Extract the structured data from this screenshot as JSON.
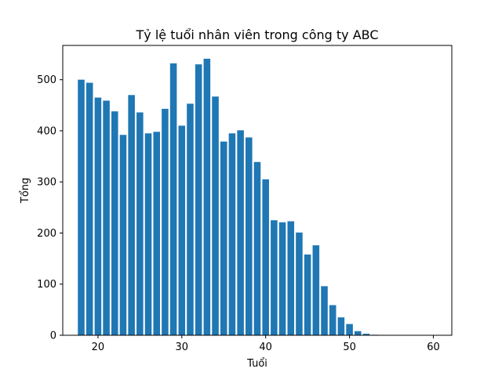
{
  "chart_data": {
    "type": "bar",
    "title": "Tỷ lệ tuổi nhân viên trong công ty ABC",
    "xlabel": "Tuổi",
    "ylabel": "Tổng",
    "xlim": [
      15.8,
      62.2
    ],
    "ylim": [
      0,
      567
    ],
    "xticks": [
      20,
      30,
      40,
      50,
      60
    ],
    "yticks": [
      0,
      100,
      200,
      300,
      400,
      500
    ],
    "bar_color": "#1f77b4",
    "grid": false,
    "legend": "none",
    "x": [
      18,
      19,
      20,
      21,
      22,
      23,
      24,
      25,
      26,
      27,
      28,
      29,
      30,
      31,
      32,
      33,
      34,
      35,
      36,
      37,
      38,
      39,
      40,
      41,
      42,
      43,
      44,
      45,
      46,
      47,
      48,
      49,
      50,
      51,
      52,
      53,
      54,
      55,
      56,
      57,
      58,
      59,
      60,
      61
    ],
    "values": [
      500,
      494,
      465,
      459,
      438,
      392,
      470,
      436,
      395,
      398,
      443,
      532,
      410,
      453,
      530,
      541,
      467,
      379,
      395,
      401,
      387,
      339,
      305,
      225,
      221,
      223,
      201,
      158,
      176,
      96,
      59,
      35,
      22,
      8,
      3,
      1,
      0,
      0,
      0,
      0,
      0,
      0,
      0,
      0
    ]
  }
}
